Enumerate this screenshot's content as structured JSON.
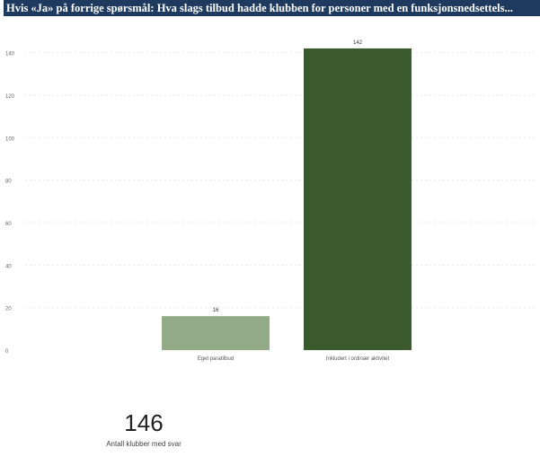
{
  "header": {
    "title": "Hvis «Ja» på forrige spørsmål: Hva slags tilbud hadde klubben for personer med en funksjonsnedsettels..."
  },
  "chart_data": {
    "type": "bar",
    "categories": [
      "Eget paratilbud",
      "Inkludert i ordinær aktivitet"
    ],
    "values": [
      16,
      142
    ],
    "colors": [
      "#94ab88",
      "#3b5a2e"
    ],
    "ylim": [
      0,
      150
    ],
    "yticks": [
      0,
      20,
      40,
      60,
      80,
      100,
      120,
      140
    ],
    "grid": true,
    "data_labels": [
      "16",
      "142"
    ]
  },
  "kpi": {
    "value": "146",
    "label": "Antall klubber med svar"
  }
}
